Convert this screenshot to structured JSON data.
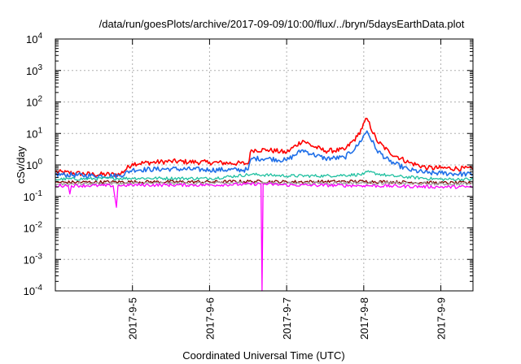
{
  "chart_data": {
    "type": "line",
    "title": "/data/run/goesPlots/archive/2017-09-09/10:00/flux/../bryn/5daysEarthData.plot",
    "xlabel": "Coordinated Universal Time (UTC)",
    "ylabel": "cSv/day",
    "y_scale": "log",
    "ylim": [
      0.0001,
      10000
    ],
    "xlim": [
      "2017-09-04T00:00",
      "2017-09-09T10:00"
    ],
    "x_ticks": [
      "2017-9-5",
      "2017-9-6",
      "2017-9-7",
      "2017-9-8",
      "2017-9-9"
    ],
    "y_ticks": [
      {
        "base": "10",
        "exp": "-4"
      },
      {
        "base": "10",
        "exp": "-3"
      },
      {
        "base": "10",
        "exp": "-2"
      },
      {
        "base": "10",
        "exp": "-1"
      },
      {
        "base": "10",
        "exp": "0"
      },
      {
        "base": "10",
        "exp": "1"
      },
      {
        "base": "10",
        "exp": "2"
      },
      {
        "base": "10",
        "exp": "3"
      },
      {
        "base": "10",
        "exp": "4"
      }
    ],
    "grid": true,
    "legend": "none",
    "series": [
      {
        "color": "#ff0000",
        "x": [
          "2017-09-04T00:00",
          "2017-09-04T12:00",
          "2017-09-04T20:00",
          "2017-09-05T00:00",
          "2017-09-05T12:00",
          "2017-09-06T00:00",
          "2017-09-06T12:00",
          "2017-09-06T13:00",
          "2017-09-06T18:00",
          "2017-09-07T00:00",
          "2017-09-07T05:00",
          "2017-09-07T08:00",
          "2017-09-07T12:00",
          "2017-09-07T18:00",
          "2017-09-07T22:00",
          "2017-09-08T01:00",
          "2017-09-08T04:00",
          "2017-09-08T08:00",
          "2017-09-08T14:00",
          "2017-09-08T20:00",
          "2017-09-09T00:00",
          "2017-09-09T10:00"
        ],
        "y": [
          0.6,
          0.5,
          0.5,
          1.1,
          1.3,
          1.2,
          1.1,
          3.0,
          3.0,
          2.5,
          6.0,
          4.0,
          2.8,
          3.0,
          8.0,
          30.0,
          6.0,
          2.5,
          1.2,
          0.8,
          0.8,
          0.75
        ]
      },
      {
        "color": "#1f6fe8",
        "x": [
          "2017-09-04T00:00",
          "2017-09-04T12:00",
          "2017-09-04T20:00",
          "2017-09-05T00:00",
          "2017-09-05T12:00",
          "2017-09-06T00:00",
          "2017-09-06T12:00",
          "2017-09-06T13:00",
          "2017-09-06T18:00",
          "2017-09-07T00:00",
          "2017-09-07T05:00",
          "2017-09-07T08:00",
          "2017-09-07T12:00",
          "2017-09-07T18:00",
          "2017-09-07T22:00",
          "2017-09-08T01:00",
          "2017-09-08T04:00",
          "2017-09-08T08:00",
          "2017-09-08T14:00",
          "2017-09-08T20:00",
          "2017-09-09T00:00",
          "2017-09-09T10:00"
        ],
        "y": [
          0.5,
          0.45,
          0.45,
          0.7,
          0.75,
          0.7,
          0.7,
          1.6,
          1.6,
          1.4,
          3.0,
          2.2,
          1.6,
          1.7,
          4.0,
          12.0,
          3.0,
          1.3,
          0.7,
          0.55,
          0.55,
          0.5
        ]
      },
      {
        "color": "#20c0a0",
        "x": [
          "2017-09-04T00:00",
          "2017-09-05T00:00",
          "2017-09-06T00:00",
          "2017-09-06T13:00",
          "2017-09-07T00:00",
          "2017-09-07T12:00",
          "2017-09-08T00:00",
          "2017-09-08T01:00",
          "2017-09-08T08:00",
          "2017-09-09T00:00",
          "2017-09-09T10:00"
        ],
        "y": [
          0.35,
          0.38,
          0.37,
          0.5,
          0.45,
          0.45,
          0.5,
          0.6,
          0.45,
          0.35,
          0.35
        ]
      },
      {
        "color": "#800000",
        "x": [
          "2017-09-04T00:00",
          "2017-09-05T00:00",
          "2017-09-06T00:00",
          "2017-09-06T13:00",
          "2017-09-07T00:00",
          "2017-09-08T00:00",
          "2017-09-09T00:00",
          "2017-09-09T10:00"
        ],
        "y": [
          0.28,
          0.29,
          0.29,
          0.3,
          0.29,
          0.3,
          0.27,
          0.27
        ]
      },
      {
        "color": "#a0a0a0",
        "x": [
          "2017-09-04T00:00",
          "2017-09-05T00:00",
          "2017-09-06T00:00",
          "2017-09-06T13:00",
          "2017-09-07T00:00",
          "2017-09-08T00:00",
          "2017-09-09T00:00",
          "2017-09-09T10:00"
        ],
        "y": [
          0.25,
          0.26,
          0.26,
          0.27,
          0.26,
          0.27,
          0.25,
          0.25
        ]
      },
      {
        "color": "#ff00ff",
        "x": [
          "2017-09-04T00:00",
          "2017-09-04T04:00",
          "2017-09-04T04:30",
          "2017-09-04T05:00",
          "2017-09-04T18:00",
          "2017-09-04T19:00",
          "2017-09-04T19:30",
          "2017-09-05T00:00",
          "2017-09-06T00:00",
          "2017-09-06T16:00",
          "2017-09-06T16:20",
          "2017-09-06T16:40",
          "2017-09-07T00:00",
          "2017-09-08T00:00",
          "2017-09-09T00:00",
          "2017-09-09T10:00"
        ],
        "y": [
          0.22,
          0.22,
          0.12,
          0.22,
          0.22,
          0.045,
          0.22,
          0.23,
          0.23,
          0.25,
          0.0001,
          0.25,
          0.23,
          0.22,
          0.2,
          0.2
        ]
      }
    ]
  }
}
